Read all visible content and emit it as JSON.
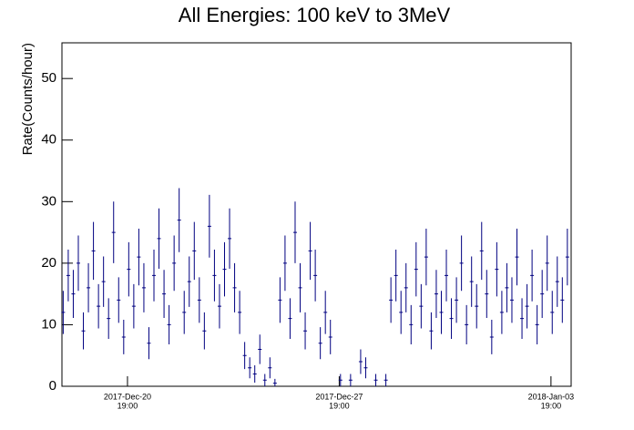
{
  "chart_data": {
    "type": "errorbar",
    "title": "All Energies:  100 keV to 3MeV",
    "y_label": "Rate(Counts/hour)",
    "color": "#000080",
    "x": [
      "2017-12-18T16:00",
      "2017-12-18T20:00",
      "2017-12-19T00:00",
      "2017-12-19T04:00",
      "2017-12-19T08:00",
      "2017-12-19T12:00",
      "2017-12-19T16:00",
      "2017-12-19T20:00",
      "2017-12-20T00:00",
      "2017-12-20T04:00",
      "2017-12-20T08:00",
      "2017-12-20T12:00",
      "2017-12-20T16:00",
      "2017-12-20T20:00",
      "2017-12-21T00:00",
      "2017-12-21T04:00",
      "2017-12-21T08:00",
      "2017-12-21T12:00",
      "2017-12-21T16:00",
      "2017-12-21T20:00",
      "2017-12-22T00:00",
      "2017-12-22T04:00",
      "2017-12-22T08:00",
      "2017-12-22T12:00",
      "2017-12-22T16:00",
      "2017-12-22T20:00",
      "2017-12-23T00:00",
      "2017-12-23T04:00",
      "2017-12-23T08:00",
      "2017-12-23T12:00",
      "2017-12-23T16:00",
      "2017-12-23T20:00",
      "2017-12-24T00:00",
      "2017-12-24T04:00",
      "2017-12-24T08:00",
      "2017-12-24T12:00",
      "2017-12-24T16:00",
      "2017-12-24T20:00",
      "2017-12-25T00:00",
      "2017-12-25T04:00",
      "2017-12-25T08:00",
      "2017-12-25T12:00",
      "2017-12-25T16:00",
      "2017-12-25T20:00",
      "2017-12-26T00:00",
      "2017-12-26T04:00",
      "2017-12-26T08:00",
      "2017-12-26T12:00",
      "2017-12-26T16:00",
      "2017-12-26T20:00",
      "2017-12-27T00:00",
      "2017-12-27T04:00",
      "2017-12-27T08:00",
      "2017-12-27T12:00",
      "2017-12-27T20:00",
      "2017-12-28T04:00",
      "2017-12-28T12:00",
      "2017-12-28T16:00",
      "2017-12-29T00:00",
      "2017-12-29T08:00",
      "2017-12-29T12:00",
      "2017-12-29T16:00",
      "2017-12-29T20:00",
      "2017-12-30T00:00",
      "2017-12-30T04:00",
      "2017-12-30T08:00",
      "2017-12-30T12:00",
      "2017-12-30T16:00",
      "2017-12-30T20:00",
      "2017-12-31T00:00",
      "2017-12-31T04:00",
      "2017-12-31T08:00",
      "2017-12-31T12:00",
      "2017-12-31T16:00",
      "2017-12-31T20:00",
      "2018-01-01T00:00",
      "2018-01-01T04:00",
      "2018-01-01T08:00",
      "2018-01-01T12:00",
      "2018-01-01T16:00",
      "2018-01-01T20:00",
      "2018-01-02T00:00",
      "2018-01-02T04:00",
      "2018-01-02T08:00",
      "2018-01-02T12:00",
      "2018-01-02T16:00",
      "2018-01-02T20:00",
      "2018-01-03T00:00",
      "2018-01-03T04:00",
      "2018-01-03T08:00",
      "2018-01-03T12:00",
      "2018-01-03T16:00",
      "2018-01-03T20:00",
      "2018-01-04T00:00",
      "2018-01-04T04:00",
      "2018-01-04T08:00"
    ],
    "values": [
      12,
      18,
      15,
      20,
      9,
      16,
      22,
      13,
      17,
      11,
      25,
      14,
      8,
      19,
      13,
      21,
      16,
      7,
      18,
      24,
      15,
      10,
      20,
      27,
      12,
      17,
      22,
      14,
      9,
      26,
      18,
      13,
      19,
      24,
      16,
      12,
      5,
      3,
      2,
      6,
      1,
      3,
      0.5,
      14,
      20,
      11,
      25,
      16,
      9,
      22,
      18,
      7,
      12,
      8,
      1,
      1,
      4,
      3,
      1,
      1,
      14,
      18,
      12,
      16,
      10,
      19,
      13,
      21,
      9,
      15,
      12,
      18,
      11,
      14,
      20,
      10,
      17,
      13,
      22,
      15,
      8,
      19,
      12,
      16,
      14,
      21,
      11,
      13,
      18,
      10,
      15,
      20,
      12,
      17,
      14,
      21
    ],
    "errors": [
      3.5,
      4.2,
      3.9,
      4.5,
      3,
      4,
      4.7,
      3.6,
      4.1,
      3.3,
      5,
      3.7,
      2.8,
      4.4,
      3.6,
      4.6,
      4,
      2.6,
      4.2,
      4.9,
      3.9,
      3.2,
      4.5,
      5.2,
      3.5,
      4.1,
      4.7,
      3.7,
      3,
      5.1,
      4.2,
      3.6,
      4.4,
      4.9,
      4,
      3.5,
      2.2,
      1.7,
      1.4,
      2.4,
      1,
      1.7,
      0.7,
      3.7,
      4.5,
      3.3,
      5,
      4,
      3,
      4.7,
      4.2,
      2.6,
      3.5,
      2.8,
      1,
      1,
      2,
      1.7,
      1,
      1,
      3.7,
      4.2,
      3.5,
      4,
      3.2,
      4.4,
      3.6,
      4.6,
      3,
      3.9,
      3.5,
      4.2,
      3.3,
      3.7,
      4.5,
      3.2,
      4.1,
      3.6,
      4.7,
      3.9,
      2.8,
      4.4,
      3.5,
      4,
      3.7,
      4.6,
      3.3,
      3.6,
      4.2,
      3.2,
      3.9,
      4.5,
      3.5,
      4.1,
      3.7,
      4.6
    ],
    "xlim": [
      "2017-12-18T15:00",
      "2018-01-04T11:00"
    ],
    "xticks": [
      {
        "value": "2017-12-20T19:00",
        "label": [
          "2017-Dec-20",
          "19:00"
        ]
      },
      {
        "value": "2017-12-27T19:00",
        "label": [
          "2017-Dec-27",
          "19:00"
        ]
      },
      {
        "value": "2018-01-03T19:00",
        "label": [
          "2018-Jan-03",
          "19:00"
        ]
      }
    ],
    "ylim": [
      0,
      55.8
    ],
    "yticks": [
      0,
      10,
      20,
      30,
      40,
      50
    ]
  }
}
